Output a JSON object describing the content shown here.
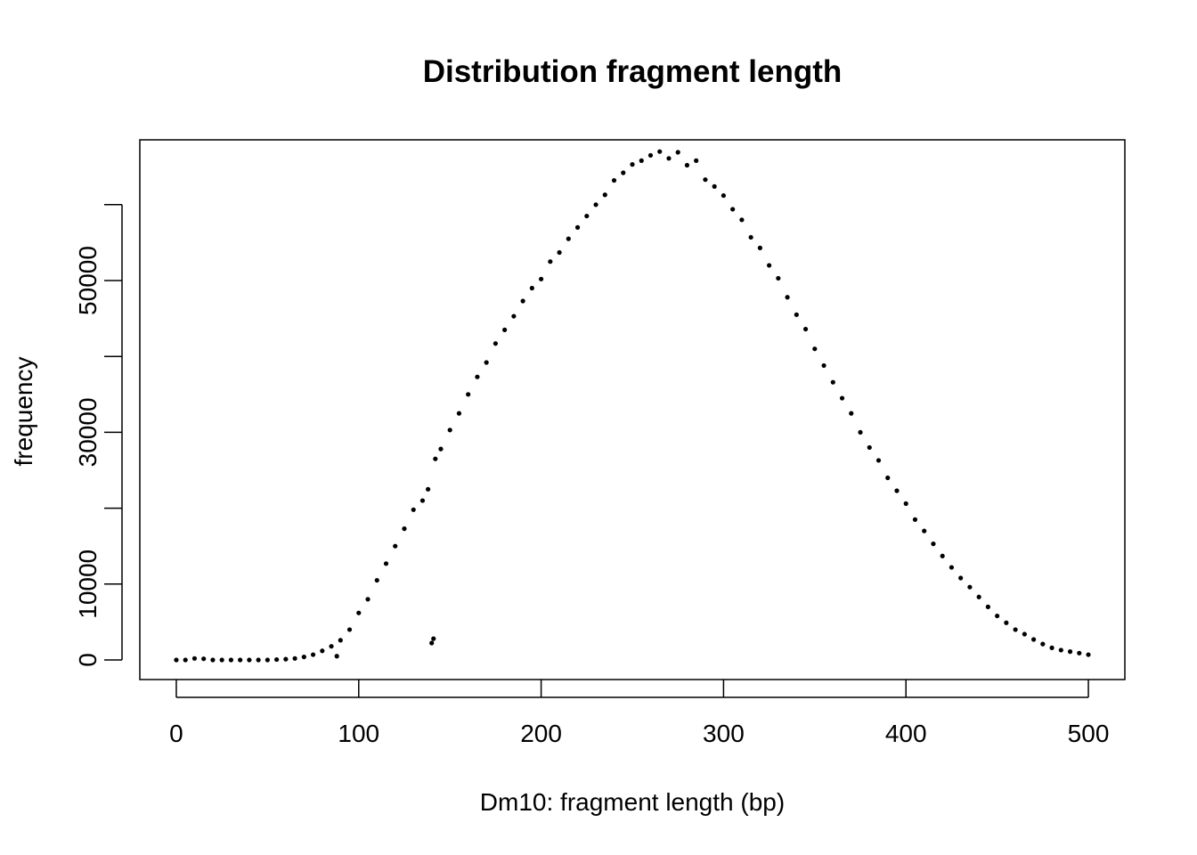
{
  "chart_data": {
    "type": "scatter",
    "title": "Distribution fragment length",
    "x_label": "Dm10: fragment length (bp)",
    "y_label": "frequency",
    "x": [
      0,
      5,
      10,
      15,
      20,
      25,
      30,
      35,
      40,
      45,
      50,
      55,
      60,
      65,
      70,
      75,
      80,
      85,
      88,
      90,
      95,
      100,
      105,
      110,
      115,
      120,
      125,
      130,
      135,
      138,
      140,
      141,
      142,
      145,
      150,
      155,
      160,
      165,
      170,
      175,
      180,
      185,
      190,
      195,
      200,
      205,
      210,
      215,
      220,
      225,
      230,
      235,
      240,
      245,
      250,
      255,
      260,
      265,
      270,
      275,
      280,
      285,
      290,
      295,
      300,
      305,
      310,
      315,
      320,
      325,
      330,
      335,
      340,
      345,
      350,
      355,
      360,
      365,
      370,
      375,
      380,
      385,
      390,
      395,
      400,
      405,
      410,
      415,
      420,
      425,
      430,
      435,
      440,
      445,
      450,
      455,
      460,
      465,
      470,
      475,
      480,
      485,
      490,
      495,
      500
    ],
    "values": [
      0,
      0,
      200,
      150,
      0,
      0,
      0,
      0,
      0,
      0,
      0,
      50,
      100,
      200,
      400,
      700,
      1200,
      1800,
      500,
      2600,
      4000,
      6200,
      8000,
      10500,
      12700,
      15000,
      17300,
      19800,
      21000,
      22500,
      2230,
      2800,
      26500,
      27800,
      30300,
      32500,
      35000,
      37300,
      39200,
      41700,
      43500,
      45300,
      47300,
      49000,
      50200,
      52500,
      53700,
      55500,
      57000,
      58500,
      60000,
      61300,
      63200,
      64200,
      65300,
      65800,
      66500,
      67000,
      66100,
      66900,
      65200,
      65800,
      63300,
      62400,
      61200,
      59400,
      58000,
      55700,
      54300,
      52000,
      50300,
      47800,
      45500,
      43600,
      41000,
      38800,
      36600,
      34500,
      32500,
      30000,
      28000,
      26300,
      24000,
      22300,
      20600,
      18500,
      17000,
      15300,
      13700,
      12200,
      10800,
      9600,
      8300,
      7000,
      5800,
      4900,
      4000,
      3400,
      2700,
      2100,
      1600,
      1300,
      1100,
      900,
      700
    ],
    "color": "#000000",
    "xlim": [
      -20,
      520
    ],
    "xticks": [
      0,
      100,
      200,
      300,
      400,
      500
    ],
    "ylim": [
      -2582,
      68545
    ],
    "yticks": [
      0,
      10000,
      {
        "value": 20000,
        "label": null
      },
      30000,
      {
        "value": 40000,
        "label": null
      },
      50000,
      {
        "value": 60000,
        "label": null
      }
    ],
    "grid": false
  }
}
